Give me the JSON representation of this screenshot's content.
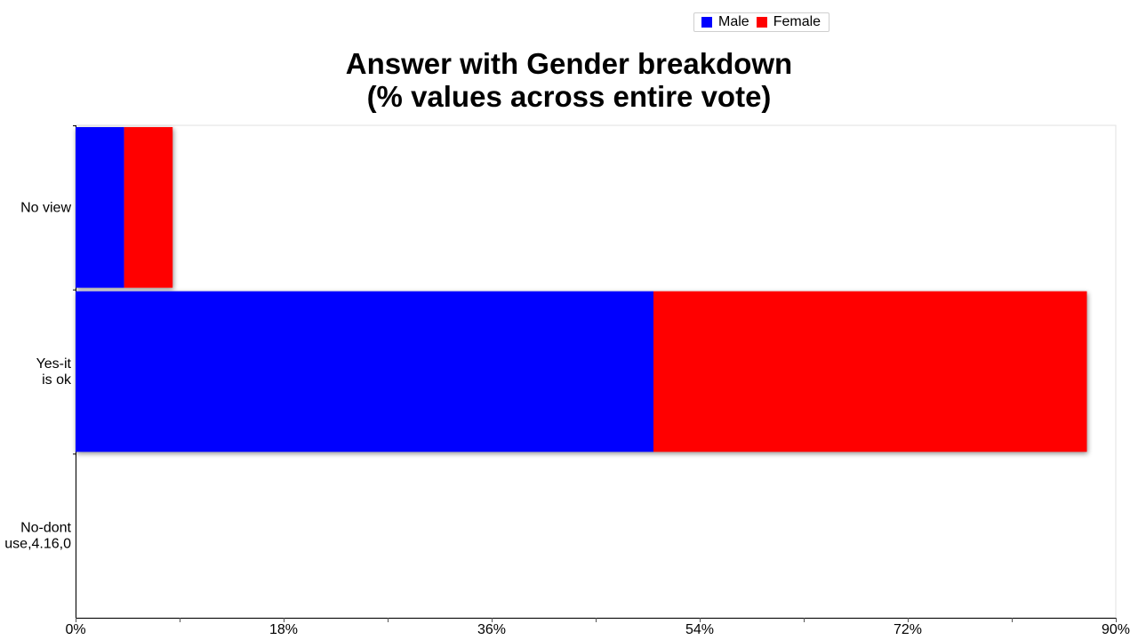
{
  "legend": {
    "items": [
      {
        "label": "Male",
        "color": "#0000ff"
      },
      {
        "label": "Female",
        "color": "#ff0000"
      }
    ]
  },
  "chart_data": {
    "type": "bar",
    "orientation": "horizontal",
    "stacked": true,
    "title_lines": [
      "Answer with Gender breakdown",
      "(% values across entire vote)"
    ],
    "categories": [
      "No view",
      "Yes-it is ok",
      "No-dont use,4.16,0"
    ],
    "category_label_lines": [
      [
        "No view"
      ],
      [
        "Yes-it",
        "is ok"
      ],
      [
        "No-dont",
        "use,4.16,0"
      ]
    ],
    "series": [
      {
        "name": "Male",
        "color": "#0000ff",
        "values": [
          4.2,
          50.0,
          0
        ]
      },
      {
        "name": "Female",
        "color": "#ff0000",
        "values": [
          4.2,
          37.5,
          0
        ]
      }
    ],
    "xlim": [
      0,
      90
    ],
    "x_ticks": [
      0,
      18,
      36,
      54,
      72,
      90
    ],
    "x_tick_labels": [
      "0%",
      "18%",
      "36%",
      "54%",
      "72%",
      "90%"
    ],
    "legend_position": "top-right",
    "grid": false
  }
}
